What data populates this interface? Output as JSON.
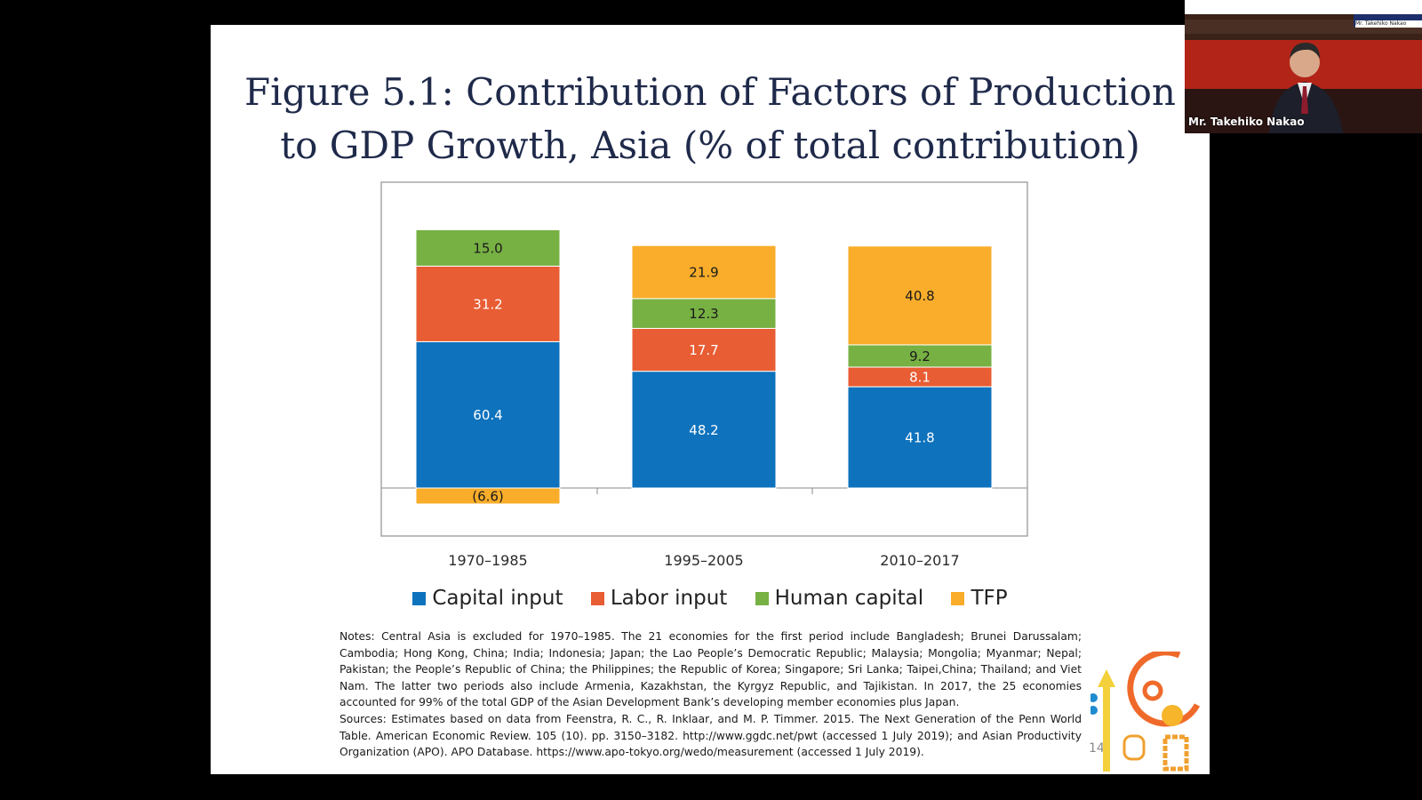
{
  "slide": {
    "title_line1": "Figure 5.1: Contribution of Factors of Production",
    "title_line2": "to GDP Growth, Asia (% of total contribution)",
    "page_number": "14"
  },
  "chart_data": {
    "type": "bar",
    "stacked": true,
    "categories": [
      "1970–1985",
      "1995–2005",
      "2010–2017"
    ],
    "series": [
      {
        "name": "Capital input",
        "color": "#0e72bd",
        "values": [
          60.4,
          48.2,
          41.8
        ]
      },
      {
        "name": "Labor input",
        "color": "#e85d33",
        "values": [
          31.2,
          17.7,
          8.1
        ]
      },
      {
        "name": "Human capital",
        "color": "#77b043",
        "values": [
          15.0,
          12.3,
          9.2
        ]
      },
      {
        "name": "TFP",
        "color": "#f9ad2a",
        "values": [
          -6.6,
          21.9,
          40.8
        ]
      }
    ],
    "value_labels": [
      [
        "60.4",
        "48.2",
        "41.8"
      ],
      [
        "31.2",
        "17.7",
        "8.1"
      ],
      [
        "15.0",
        "12.3",
        "9.2"
      ],
      [
        "(6.6)",
        "21.9",
        "40.8"
      ]
    ],
    "ylim": [
      -20,
      125
    ],
    "grid": false,
    "legend_position": "bottom"
  },
  "notes": {
    "notes_text": "Notes: Central Asia is excluded for 1970–1985. The 21 economies for the first period include Bangladesh; Brunei Darussalam; Cambodia; Hong Kong, China; India; Indonesia; Japan; the Lao People’s Democratic Republic; Malaysia; Mongolia; Myanmar; Nepal; Pakistan; the People’s Republic of China; the Philippines; the Republic of Korea; Singapore; Sri Lanka; Taipei,China; Thailand; and Viet Nam. The latter two periods also include Armenia, Kazakhstan, the Kyrgyz Republic, and Tajikistan. In 2017, the 25 economies accounted for 99% of the total GDP of the Asian Development Bank’s developing member economies plus Japan.",
    "sources_text": "Sources: Estimates based on data from Feenstra, R. C., R. Inklaar, and M. P. Timmer. 2015. The Next Generation of the Penn World Table. American Economic Review. 105 (10). pp. 3150–3182. http://www.ggdc.net/pwt (accessed 1 July 2019); and Asian Productivity Organization (APO). APO Database. https://www.apo-tokyo.org/wedo/measurement (accessed 1 July 2019)."
  },
  "video": {
    "speaker_name": "Mr. Takehiko Nakao",
    "name_tag": "Mr. Takehiko Nakao",
    "background_color": "#b32418"
  }
}
